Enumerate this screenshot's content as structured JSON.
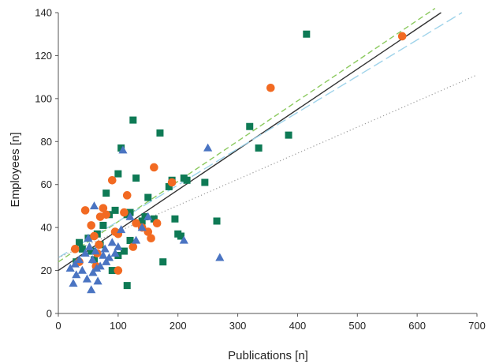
{
  "chart_data": {
    "type": "scatter",
    "title": "",
    "xlabel": "Publications [n]",
    "ylabel": "Employees [n]",
    "xlim": [
      0,
      700
    ],
    "ylim": [
      0,
      140
    ],
    "xticks": [
      0,
      100,
      200,
      300,
      400,
      500,
      600,
      700
    ],
    "yticks": [
      0,
      20,
      40,
      60,
      80,
      100,
      120,
      140
    ],
    "grid": false,
    "legend": "none",
    "series": [
      {
        "marker": "square",
        "color": "#0e7a55",
        "points": [
          [
            30,
            24
          ],
          [
            35,
            33
          ],
          [
            40,
            30
          ],
          [
            50,
            35
          ],
          [
            55,
            29
          ],
          [
            60,
            25
          ],
          [
            65,
            37
          ],
          [
            70,
            32
          ],
          [
            75,
            41
          ],
          [
            80,
            56
          ],
          [
            85,
            46
          ],
          [
            90,
            20
          ],
          [
            95,
            48
          ],
          [
            100,
            65
          ],
          [
            105,
            77
          ],
          [
            110,
            29
          ],
          [
            115,
            13
          ],
          [
            120,
            34
          ],
          [
            125,
            90
          ],
          [
            130,
            63
          ],
          [
            140,
            43
          ],
          [
            145,
            45
          ],
          [
            150,
            54
          ],
          [
            160,
            44
          ],
          [
            170,
            84
          ],
          [
            175,
            24
          ],
          [
            185,
            59
          ],
          [
            190,
            62
          ],
          [
            195,
            44
          ],
          [
            200,
            37
          ],
          [
            205,
            36
          ],
          [
            210,
            63
          ],
          [
            215,
            62
          ],
          [
            245,
            61
          ],
          [
            265,
            43
          ],
          [
            320,
            87
          ],
          [
            335,
            77
          ],
          [
            385,
            83
          ],
          [
            415,
            130
          ],
          [
            100,
            27
          ],
          [
            115,
            46
          ],
          [
            120,
            47
          ]
        ]
      },
      {
        "marker": "circle",
        "color": "#f26a22",
        "points": [
          [
            28,
            30
          ],
          [
            35,
            24
          ],
          [
            45,
            48
          ],
          [
            55,
            41
          ],
          [
            60,
            36
          ],
          [
            65,
            28
          ],
          [
            68,
            32
          ],
          [
            70,
            45
          ],
          [
            75,
            49
          ],
          [
            80,
            46
          ],
          [
            90,
            62
          ],
          [
            95,
            38
          ],
          [
            100,
            20
          ],
          [
            110,
            47
          ],
          [
            115,
            55
          ],
          [
            125,
            31
          ],
          [
            130,
            42
          ],
          [
            140,
            40
          ],
          [
            150,
            38
          ],
          [
            155,
            35
          ],
          [
            160,
            68
          ],
          [
            165,
            42
          ],
          [
            190,
            61
          ],
          [
            355,
            105
          ],
          [
            575,
            129
          ],
          [
            63,
            22
          ],
          [
            100,
            37
          ]
        ]
      },
      {
        "marker": "triangle",
        "color": "#4a74c2",
        "points": [
          [
            20,
            21
          ],
          [
            25,
            14
          ],
          [
            28,
            23
          ],
          [
            30,
            18
          ],
          [
            35,
            25
          ],
          [
            40,
            20
          ],
          [
            45,
            28
          ],
          [
            48,
            16
          ],
          [
            50,
            35
          ],
          [
            52,
            31
          ],
          [
            55,
            11
          ],
          [
            57,
            25
          ],
          [
            60,
            50
          ],
          [
            62,
            29
          ],
          [
            64,
            21
          ],
          [
            66,
            15
          ],
          [
            70,
            22
          ],
          [
            75,
            27
          ],
          [
            78,
            30
          ],
          [
            85,
            26
          ],
          [
            90,
            33
          ],
          [
            95,
            28
          ],
          [
            100,
            31
          ],
          [
            105,
            39
          ],
          [
            108,
            76
          ],
          [
            120,
            45
          ],
          [
            130,
            34
          ],
          [
            140,
            40
          ],
          [
            150,
            45
          ],
          [
            210,
            34
          ],
          [
            250,
            77
          ],
          [
            270,
            26
          ],
          [
            58,
            19
          ],
          [
            80,
            24
          ]
        ]
      }
    ],
    "trendlines": [
      {
        "style": "solid",
        "color": "#333333",
        "x": [
          0,
          640
        ],
        "y": [
          20,
          140
        ]
      },
      {
        "style": "dashed",
        "color": "#8bc95e",
        "x": [
          0,
          630
        ],
        "y": [
          24,
          142
        ]
      },
      {
        "style": "longdash",
        "color": "#9fd3ea",
        "x": [
          0,
          675
        ],
        "y": [
          26,
          140
        ]
      },
      {
        "style": "dotted",
        "color": "#999999",
        "x": [
          0,
          700
        ],
        "y": [
          26,
          111
        ]
      }
    ]
  }
}
